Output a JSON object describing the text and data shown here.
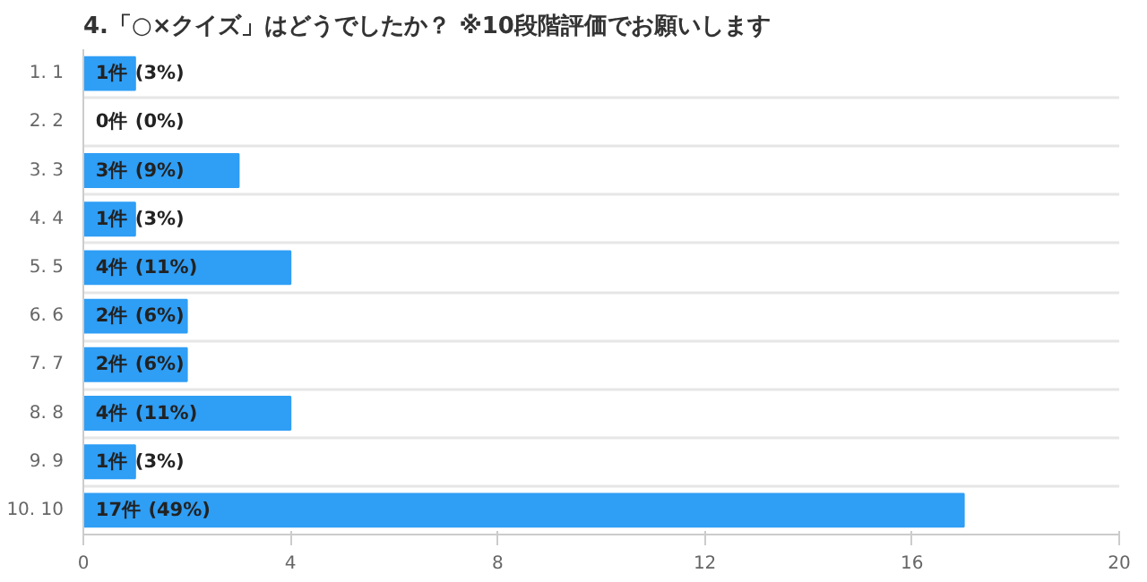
{
  "chart_data": {
    "type": "bar",
    "orientation": "horizontal",
    "title": "4.「○×クイズ」はどうでしたか？ ※10段階評価でお願いします",
    "categories": [
      "1. 1",
      "2. 2",
      "3. 3",
      "4. 4",
      "5. 5",
      "6. 6",
      "7. 7",
      "8. 8",
      "9. 9",
      "10. 10"
    ],
    "values": [
      1,
      0,
      3,
      1,
      4,
      2,
      2,
      4,
      1,
      17
    ],
    "value_labels": [
      "1件 (3%)",
      "0件 (0%)",
      "3件 (9%)",
      "1件 (3%)",
      "4件 (11%)",
      "2件 (6%)",
      "2件 (6%)",
      "4件 (11%)",
      "1件 (3%)",
      "17件 (49%)"
    ],
    "color": "#2f9ef5",
    "xlim": [
      0,
      20
    ],
    "xticks": [
      0,
      4,
      8,
      12,
      16,
      20
    ],
    "grid": "y"
  }
}
